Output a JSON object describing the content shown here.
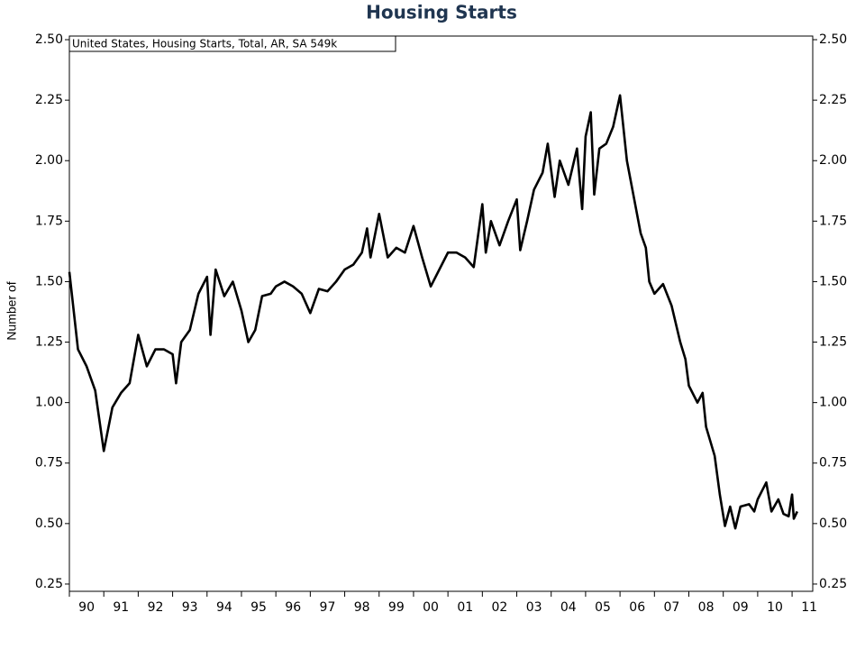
{
  "chart_data": {
    "type": "line",
    "title": "Housing Starts",
    "ylabel": "Number of",
    "legend_text": "United States, Housing Starts, Total, AR, SA 549k",
    "xlim": [
      1990,
      2011.6
    ],
    "ylim": [
      0.22,
      2.515
    ],
    "xticks": [
      {
        "value": 1990,
        "label": "90"
      },
      {
        "value": 1991,
        "label": "91"
      },
      {
        "value": 1992,
        "label": "92"
      },
      {
        "value": 1993,
        "label": "93"
      },
      {
        "value": 1994,
        "label": "94"
      },
      {
        "value": 1995,
        "label": "95"
      },
      {
        "value": 1996,
        "label": "96"
      },
      {
        "value": 1997,
        "label": "97"
      },
      {
        "value": 1998,
        "label": "98"
      },
      {
        "value": 1999,
        "label": "99"
      },
      {
        "value": 2000,
        "label": "00"
      },
      {
        "value": 2001,
        "label": "01"
      },
      {
        "value": 2002,
        "label": "02"
      },
      {
        "value": 2003,
        "label": "03"
      },
      {
        "value": 2004,
        "label": "04"
      },
      {
        "value": 2005,
        "label": "05"
      },
      {
        "value": 2006,
        "label": "06"
      },
      {
        "value": 2007,
        "label": "07"
      },
      {
        "value": 2008,
        "label": "08"
      },
      {
        "value": 2009,
        "label": "09"
      },
      {
        "value": 2010,
        "label": "10"
      },
      {
        "value": 2011,
        "label": "11"
      }
    ],
    "yticks": [
      {
        "value": 0.25,
        "label": "0.25"
      },
      {
        "value": 0.5,
        "label": "0.50"
      },
      {
        "value": 0.75,
        "label": "0.75"
      },
      {
        "value": 1,
        "label": "1.00"
      },
      {
        "value": 1.25,
        "label": "1.25"
      },
      {
        "value": 1.5,
        "label": "1.50"
      },
      {
        "value": 1.75,
        "label": "1.75"
      },
      {
        "value": 2,
        "label": "2.00"
      },
      {
        "value": 2.25,
        "label": "2.25"
      },
      {
        "value": 2.5,
        "label": "2.50"
      }
    ],
    "x": [
      1990,
      1990.25,
      1990.5,
      1990.75,
      1991,
      1991.25,
      1991.5,
      1991.75,
      1992,
      1992.25,
      1992.5,
      1992.75,
      1993,
      1993.1,
      1993.25,
      1993.5,
      1993.75,
      1994,
      1994.1,
      1994.25,
      1994.5,
      1994.75,
      1995,
      1995.2,
      1995.4,
      1995.6,
      1995.85,
      1996,
      1996.25,
      1996.5,
      1996.75,
      1997,
      1997.25,
      1997.5,
      1997.75,
      1998,
      1998.25,
      1998.5,
      1998.65,
      1998.75,
      1999,
      1999.25,
      1999.5,
      1999.75,
      2000,
      2000.25,
      2000.5,
      2000.75,
      2001,
      2001.25,
      2001.5,
      2001.75,
      2002,
      2002.1,
      2002.25,
      2002.5,
      2002.75,
      2003,
      2003.1,
      2003.3,
      2003.5,
      2003.75,
      2003.9,
      2004.1,
      2004.25,
      2004.5,
      2004.75,
      2004.9,
      2005,
      2005.15,
      2005.25,
      2005.4,
      2005.6,
      2005.8,
      2006,
      2006.2,
      2006.4,
      2006.6,
      2006.75,
      2006.85,
      2007,
      2007.25,
      2007.5,
      2007.75,
      2007.9,
      2008,
      2008.25,
      2008.4,
      2008.5,
      2008.75,
      2008.9,
      2009.05,
      2009.2,
      2009.35,
      2009.5,
      2009.75,
      2009.9,
      2010,
      2010.25,
      2010.4,
      2010.6,
      2010.75,
      2010.9,
      2011,
      2011.05,
      2011.15
    ],
    "series": [
      {
        "color": "#000000",
        "values": [
          1.54,
          1.22,
          1.15,
          1.05,
          0.8,
          0.98,
          1.04,
          1.08,
          1.28,
          1.15,
          1.22,
          1.22,
          1.2,
          1.08,
          1.25,
          1.3,
          1.45,
          1.52,
          1.28,
          1.55,
          1.44,
          1.5,
          1.38,
          1.25,
          1.3,
          1.44,
          1.45,
          1.48,
          1.5,
          1.48,
          1.45,
          1.37,
          1.47,
          1.46,
          1.5,
          1.55,
          1.57,
          1.62,
          1.72,
          1.6,
          1.78,
          1.6,
          1.64,
          1.62,
          1.73,
          1.6,
          1.48,
          1.55,
          1.62,
          1.62,
          1.6,
          1.56,
          1.82,
          1.62,
          1.75,
          1.65,
          1.75,
          1.84,
          1.63,
          1.75,
          1.88,
          1.95,
          2.07,
          1.85,
          2.0,
          1.9,
          2.05,
          1.8,
          2.1,
          2.2,
          1.86,
          2.05,
          2.07,
          2.14,
          2.27,
          2.0,
          1.85,
          1.7,
          1.64,
          1.5,
          1.45,
          1.49,
          1.4,
          1.25,
          1.18,
          1.07,
          1.0,
          1.04,
          0.9,
          0.78,
          0.62,
          0.49,
          0.57,
          0.48,
          0.57,
          0.58,
          0.55,
          0.6,
          0.67,
          0.55,
          0.6,
          0.54,
          0.53,
          0.62,
          0.52,
          0.55
        ]
      }
    ]
  }
}
